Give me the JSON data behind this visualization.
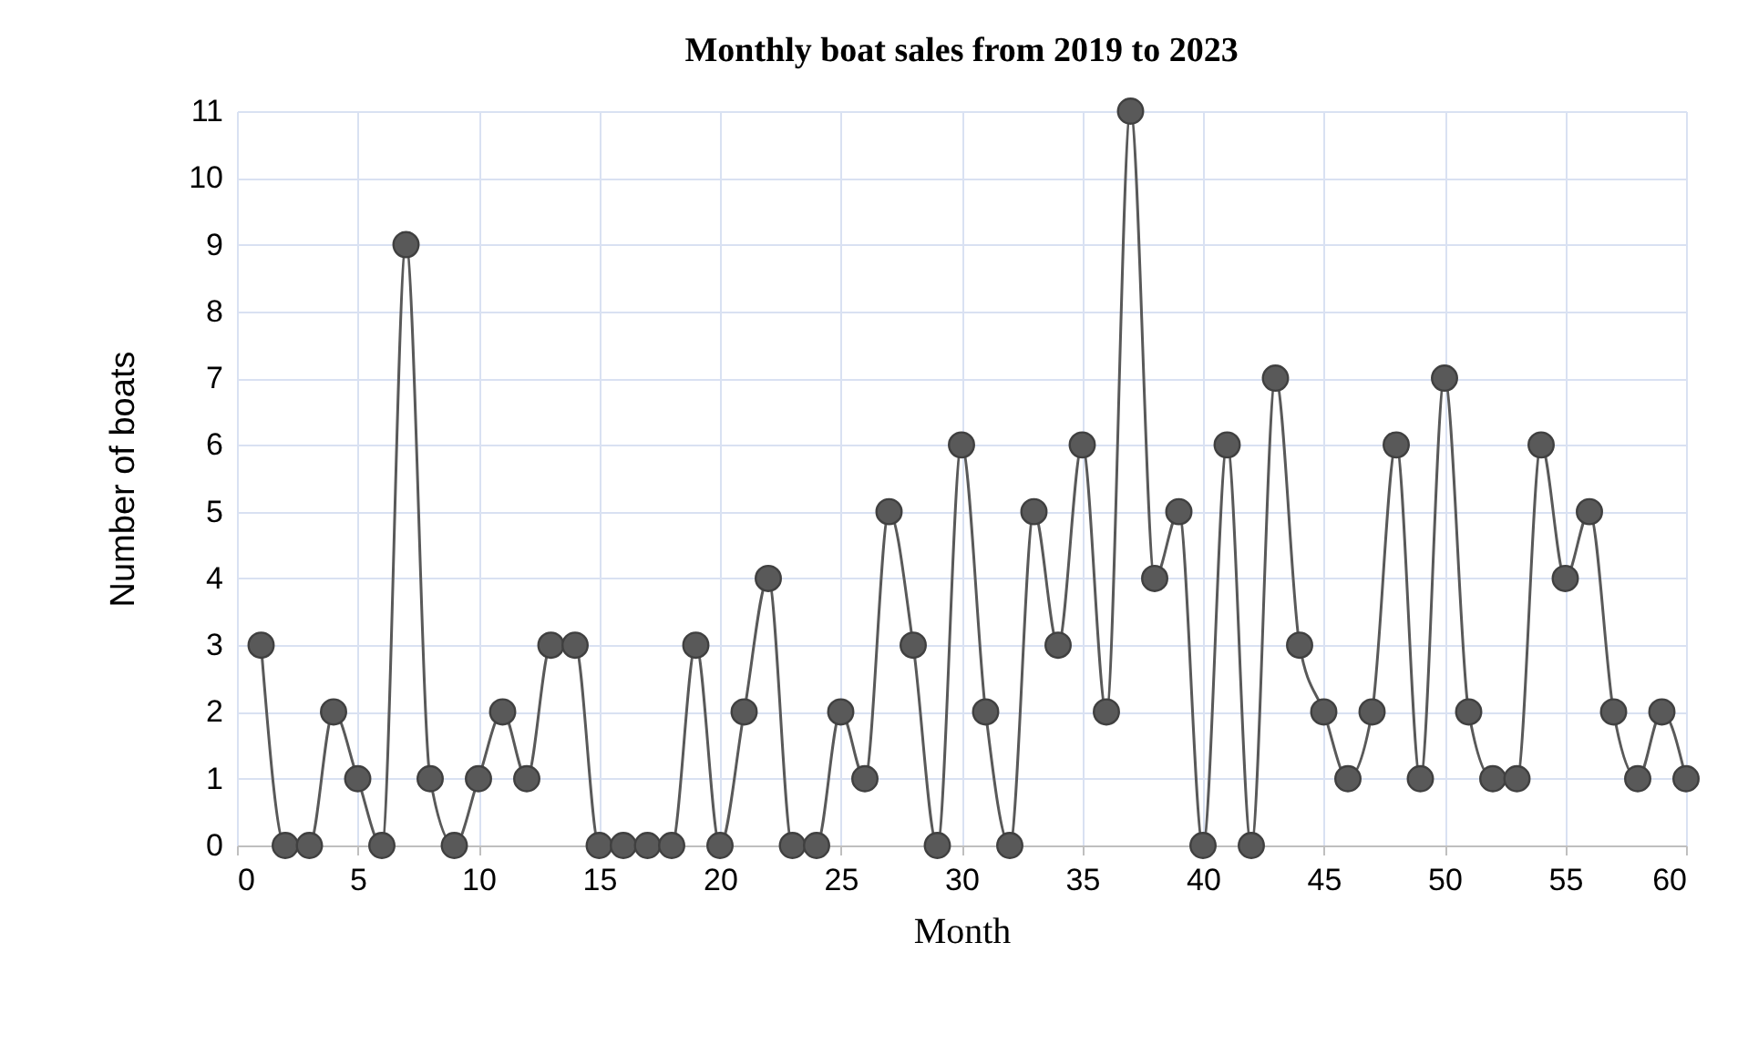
{
  "chart_data": {
    "type": "line",
    "title": "Monthly boat sales from 2019 to 2023",
    "xlabel": "Month",
    "ylabel": "Number of boats",
    "x": [
      1,
      2,
      3,
      4,
      5,
      6,
      7,
      8,
      9,
      10,
      11,
      12,
      13,
      14,
      15,
      16,
      17,
      18,
      19,
      20,
      21,
      22,
      23,
      24,
      25,
      26,
      27,
      28,
      29,
      30,
      31,
      32,
      33,
      34,
      35,
      36,
      37,
      38,
      39,
      40,
      41,
      42,
      43,
      44,
      45,
      46,
      47,
      48,
      49,
      50,
      51,
      52,
      53,
      54,
      55,
      56,
      57,
      58,
      59,
      60
    ],
    "series": [
      {
        "color": "#595959",
        "values": [
          3,
          0,
          0,
          2,
          1,
          0,
          9,
          1,
          0,
          1,
          2,
          1,
          3,
          3,
          0,
          0,
          0,
          0,
          3,
          0,
          2,
          4,
          0,
          0,
          2,
          1,
          5,
          3,
          0,
          6,
          2,
          0,
          5,
          3,
          6,
          2,
          11,
          4,
          5,
          0,
          6,
          0,
          7,
          3,
          2,
          1,
          2,
          6,
          1,
          7,
          2,
          1,
          1,
          6,
          4,
          5,
          2,
          1,
          2,
          1
        ]
      }
    ],
    "xlim": [
      0,
      60
    ],
    "xticks": [
      0,
      5,
      10,
      15,
      20,
      25,
      30,
      35,
      40,
      45,
      50,
      55,
      60
    ],
    "ylim": [
      0,
      11
    ],
    "yticks": [
      0,
      1,
      2,
      3,
      4,
      5,
      6,
      7,
      8,
      9,
      10,
      11
    ],
    "grid": true,
    "legend": false,
    "marker": "circle",
    "line_style": "solid"
  }
}
